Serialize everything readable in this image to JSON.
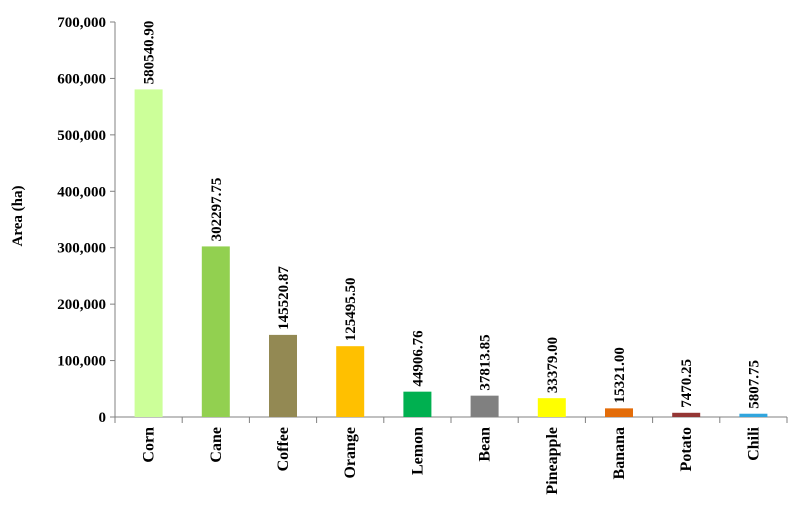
{
  "chart_data": {
    "type": "bar",
    "title": "",
    "xlabel": "",
    "ylabel": "Area (ha)",
    "ylim": [
      0,
      700000
    ],
    "ytick_values": [
      0,
      100000,
      200000,
      300000,
      400000,
      500000,
      600000,
      700000
    ],
    "ytick_labels": [
      "0",
      "100,000",
      "200,000",
      "300,000",
      "400,000",
      "500,000",
      "600,000",
      "700,000"
    ],
    "grid": false,
    "legend": "none",
    "categories": [
      "Corn",
      "Cane",
      "Coffee",
      "Orange",
      "Lemon",
      "Bean",
      "Pineapple",
      "Banana",
      "Potato",
      "Chili"
    ],
    "values": [
      580540.9,
      302297.75,
      145520.87,
      125495.5,
      44906.76,
      37813.85,
      33379.0,
      15321.0,
      7470.25,
      5807.75
    ],
    "value_labels": [
      "580540.90",
      "302297.75",
      "145520.87",
      "125495.50",
      "44906.76",
      "37813.85",
      "33379.00",
      "15321.00",
      "7470.25",
      "5807.75"
    ],
    "colors": [
      "#CCFF99",
      "#92D050",
      "#938953",
      "#FFC000",
      "#00B050",
      "#808080",
      "#FFFF00",
      "#E36C09",
      "#943634",
      "#31A5DD"
    ]
  }
}
